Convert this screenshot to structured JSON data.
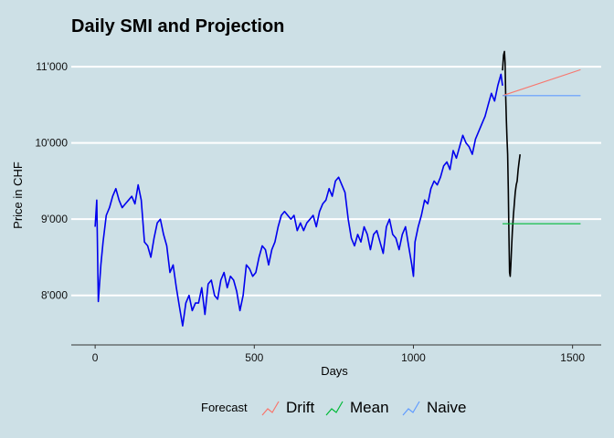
{
  "chart_data": {
    "type": "line",
    "title": "Daily SMI and Projection",
    "xlabel": "Days",
    "ylabel": "Price in CHF",
    "xlim": [
      -75,
      1590
    ],
    "ylim": [
      7350,
      11300
    ],
    "x_ticks": [
      0,
      500,
      1000,
      1500
    ],
    "x_tick_labels": [
      "0",
      "500",
      "1000",
      "1500"
    ],
    "y_ticks": [
      8000,
      9000,
      10000,
      11000
    ],
    "y_tick_labels": [
      "8'000",
      "9'000",
      "10'000",
      "11'000"
    ],
    "grid": "horizontal major lines",
    "legend": {
      "title": "Forecast",
      "placement": "bottom",
      "entries": [
        "Drift",
        "Mean",
        "Naive"
      ]
    },
    "colors": {
      "history": "#0000ee",
      "test": "#000000",
      "Drift": "#f8766d",
      "Mean": "#00ba38",
      "Naive": "#619cff",
      "background": "#cde0e6",
      "grid": "#ffffff"
    },
    "series": [
      {
        "role": "history",
        "x": [
          0,
          5,
          10,
          18,
          25,
          35,
          45,
          55,
          65,
          75,
          85,
          95,
          105,
          115,
          125,
          135,
          145,
          155,
          165,
          175,
          185,
          195,
          205,
          215,
          225,
          235,
          245,
          255,
          265,
          275,
          285,
          295,
          305,
          315,
          325,
          335,
          345,
          355,
          365,
          375,
          385,
          395,
          405,
          415,
          425,
          435,
          445,
          455,
          465,
          475,
          485,
          495,
          505,
          515,
          525,
          535,
          545,
          555,
          565,
          575,
          585,
          595,
          605,
          615,
          625,
          635,
          645,
          655,
          665,
          675,
          685,
          695,
          705,
          715,
          725,
          735,
          745,
          755,
          765,
          775,
          785,
          795,
          805,
          815,
          825,
          835,
          845,
          855,
          865,
          875,
          885,
          895,
          905,
          915,
          925,
          935,
          945,
          955,
          965,
          975,
          985,
          995,
          1000,
          1005,
          1015,
          1025,
          1035,
          1045,
          1055,
          1065,
          1075,
          1085,
          1095,
          1105,
          1115,
          1125,
          1135,
          1145,
          1155,
          1165,
          1175,
          1185,
          1195,
          1205,
          1215,
          1225,
          1235,
          1245,
          1255,
          1265,
          1275,
          1280
        ],
        "y": [
          8900,
          9250,
          7920,
          8400,
          8700,
          9050,
          9150,
          9300,
          9400,
          9250,
          9150,
          9200,
          9250,
          9300,
          9200,
          9450,
          9250,
          8700,
          8650,
          8500,
          8750,
          8950,
          9000,
          8800,
          8650,
          8300,
          8400,
          8100,
          7850,
          7600,
          7900,
          8000,
          7800,
          7900,
          7900,
          8100,
          7750,
          8150,
          8200,
          8000,
          7950,
          8200,
          8300,
          8100,
          8250,
          8200,
          8050,
          7800,
          8000,
          8400,
          8350,
          8250,
          8300,
          8500,
          8650,
          8600,
          8400,
          8600,
          8700,
          8900,
          9050,
          9100,
          9050,
          9000,
          9050,
          8850,
          8950,
          8850,
          8950,
          9000,
          9050,
          8900,
          9100,
          9200,
          9250,
          9400,
          9300,
          9500,
          9550,
          9450,
          9350,
          9000,
          8750,
          8650,
          8800,
          8700,
          8900,
          8800,
          8600,
          8800,
          8850,
          8700,
          8550,
          8900,
          9000,
          8800,
          8750,
          8600,
          8800,
          8900,
          8650,
          8400,
          8250,
          8700,
          8900,
          9050,
          9250,
          9200,
          9400,
          9500,
          9450,
          9550,
          9700,
          9750,
          9650,
          9900,
          9800,
          9950,
          10100,
          10000,
          9950,
          9850,
          10050,
          10150,
          10250,
          10350,
          10500,
          10650,
          10550,
          10750,
          10900,
          10750
        ]
      },
      {
        "role": "test",
        "x": [
          1280,
          1283,
          1286,
          1288,
          1290,
          1292,
          1294,
          1296,
          1298,
          1300,
          1302,
          1304,
          1306,
          1308,
          1311,
          1314,
          1317,
          1320,
          1323,
          1326,
          1329,
          1332,
          1335
        ],
        "y": [
          10950,
          11150,
          11200,
          11050,
          10600,
          10300,
          10050,
          9850,
          9400,
          8800,
          8300,
          8250,
          8400,
          8600,
          8850,
          9050,
          9200,
          9350,
          9450,
          9500,
          9650,
          9750,
          9850
        ]
      },
      {
        "name": "Drift",
        "x": [
          1280,
          1525
        ],
        "y": [
          10620,
          10960
        ]
      },
      {
        "name": "Mean",
        "x": [
          1280,
          1525
        ],
        "y": [
          8940,
          8940
        ]
      },
      {
        "name": "Naive",
        "x": [
          1280,
          1525
        ],
        "y": [
          10620,
          10620
        ]
      }
    ]
  }
}
